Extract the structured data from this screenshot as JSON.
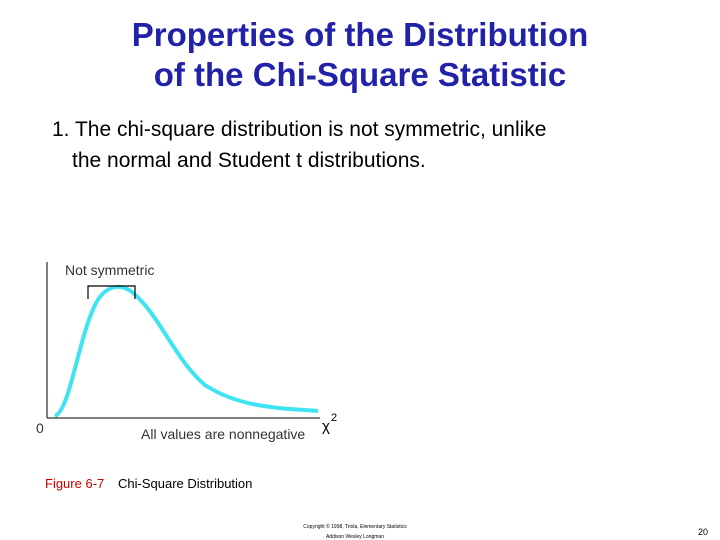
{
  "slide": {
    "title": [
      "Properties of the Distribution",
      "of the Chi-Square Statistic"
    ],
    "point": [
      "1. The chi-square distribution is not symmetric, unlike",
      "the normal and Student t distributions."
    ],
    "figure": {
      "annotation": "Not symmetric",
      "origin_label": "0",
      "axis_note": "All values are nonnegative",
      "axis_symbol": "χ",
      "axis_symbol_superscript": "2"
    },
    "caption": {
      "number": "Figure 6-7",
      "text": "Chi-Square Distribution"
    },
    "copyright": [
      "Copyright © 1998, Triola, Elementary Statistics",
      "Addison Wesley Longman"
    ],
    "page_number": "20"
  }
}
